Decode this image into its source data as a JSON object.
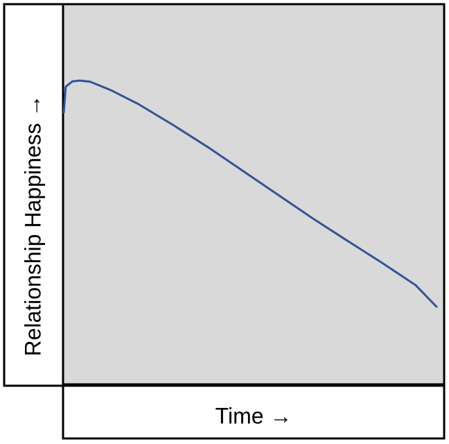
{
  "chart_data": {
    "type": "line",
    "x_label": "Time →",
    "y_label": "Relationship Happiness →",
    "x": [
      0.2,
      0.7,
      2.5,
      4.4,
      7.1,
      12.5,
      19.8,
      28.9,
      38,
      47.1,
      56.2,
      65.3,
      74.4,
      83.5,
      92.5,
      98
    ],
    "values": [
      71.5,
      78.3,
      79.7,
      79.9,
      79.6,
      77.4,
      73.7,
      68.2,
      62.4,
      56.2,
      50,
      43.8,
      37.9,
      32.1,
      26.1,
      20.4
    ],
    "color": "#2f5597",
    "xlim": [
      0,
      100
    ],
    "ylim": [
      0,
      100
    ]
  }
}
